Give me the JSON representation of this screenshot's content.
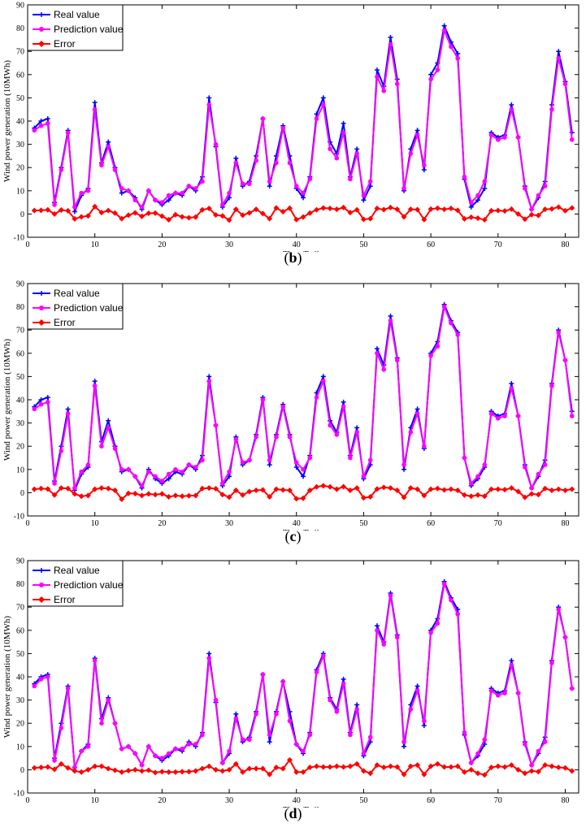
{
  "chart_data": [
    {
      "type": "line",
      "panel_label": "b",
      "xlabel": "Time/Daily",
      "ylabel": "Wind power generation (10MWh)",
      "xlim": [
        0,
        82
      ],
      "ylim": [
        -10,
        90
      ],
      "xticks": [
        0,
        10,
        20,
        30,
        40,
        50,
        60,
        70,
        80
      ],
      "yticks": [
        -10,
        0,
        10,
        20,
        30,
        40,
        50,
        60,
        70,
        80,
        90
      ],
      "legend_position": "top-left",
      "x_start": 1,
      "series": [
        {
          "name": "Real value",
          "color": "#0000ff",
          "marker": "plus",
          "values": [
            37,
            40,
            41,
            5,
            20,
            36,
            1,
            8,
            11,
            48,
            22,
            31,
            20,
            9,
            10,
            7,
            2,
            10,
            6,
            4,
            6,
            9,
            8,
            12,
            10,
            16,
            50,
            29,
            3,
            7,
            24,
            12,
            14,
            25,
            41,
            12,
            25,
            38,
            25,
            11,
            7,
            16,
            43,
            50,
            31,
            26,
            39,
            16,
            28,
            6,
            12,
            62,
            55,
            76,
            58,
            10,
            28,
            36,
            19,
            60,
            65,
            81,
            74,
            69,
            15,
            3,
            6,
            11,
            35,
            33,
            34,
            47,
            33,
            12,
            2,
            7,
            14,
            47,
            70,
            57,
            35
          ]
        },
        {
          "name": "Prediction value",
          "color": "#ff00ff",
          "marker": "circle",
          "values": [
            36,
            38,
            39,
            4,
            19,
            35,
            3,
            9,
            10,
            45,
            21,
            29,
            19,
            11,
            10,
            6,
            3,
            10,
            6,
            5,
            8,
            9,
            9,
            12,
            11,
            14,
            47,
            30,
            4,
            9,
            22,
            13,
            13,
            23,
            41,
            14,
            22,
            37,
            22,
            12,
            9,
            15,
            41,
            47,
            28,
            24,
            35,
            15,
            26,
            8,
            14,
            59,
            53,
            73,
            56,
            11,
            26,
            34,
            21,
            58,
            62,
            79,
            72,
            67,
            16,
            5,
            8,
            14,
            34,
            32,
            33,
            45,
            33,
            11,
            2,
            8,
            12,
            45,
            67,
            56,
            32
          ]
        },
        {
          "name": "Error",
          "color": "#ff0000",
          "marker": "diamond",
          "values": [
            1.5,
            1.6,
            1.8,
            0.0,
            1.7,
            1.4,
            -2.1,
            -1.2,
            -0.8,
            3.2,
            0.6,
            1.5,
            0.4,
            -2.0,
            -0.5,
            0.5,
            -1.0,
            0.3,
            0.4,
            -0.9,
            -2.5,
            -0.3,
            -1.2,
            -1.6,
            -1.3,
            1.8,
            2.4,
            -0.4,
            -0.8,
            -2.6,
            2.0,
            -0.5,
            0.5,
            2.0,
            0.2,
            -2.0,
            2.6,
            1.0,
            2.5,
            -2.4,
            -1.3,
            0.4,
            1.8,
            2.6,
            2.4,
            2.0,
            2.8,
            0.6,
            1.8,
            -2.3,
            -2.0,
            2.4,
            1.9,
            2.8,
            2.0,
            -1.2,
            2.0,
            1.9,
            -2.4,
            2.1,
            2.5,
            2.0,
            2.4,
            1.6,
            -2.1,
            -1.4,
            -1.8,
            -2.5,
            1.4,
            1.5,
            1.3,
            2.1,
            0.0,
            -2.2,
            -0.3,
            -0.6,
            2.0,
            2.2,
            3.0,
            1.4,
            2.6
          ]
        }
      ]
    },
    {
      "type": "line",
      "panel_label": "c",
      "xlabel": "Time/Daily",
      "ylabel": "Wind power generation (10MWh)",
      "xlim": [
        0,
        82
      ],
      "ylim": [
        -10,
        90
      ],
      "xticks": [
        0,
        10,
        20,
        30,
        40,
        50,
        60,
        70,
        80
      ],
      "yticks": [
        -10,
        0,
        10,
        20,
        30,
        40,
        50,
        60,
        70,
        80,
        90
      ],
      "legend_position": "top-left",
      "x_start": 1,
      "series": [
        {
          "name": "Real value",
          "color": "#0000ff",
          "marker": "plus",
          "values": [
            37,
            40,
            41,
            5,
            20,
            36,
            1,
            8,
            11,
            48,
            22,
            31,
            20,
            9,
            10,
            7,
            2,
            10,
            6,
            4,
            6,
            9,
            8,
            12,
            10,
            16,
            50,
            29,
            3,
            7,
            24,
            12,
            14,
            25,
            41,
            12,
            25,
            38,
            25,
            11,
            7,
            16,
            43,
            50,
            31,
            26,
            39,
            16,
            28,
            6,
            12,
            62,
            55,
            76,
            58,
            10,
            28,
            36,
            19,
            60,
            65,
            81,
            74,
            69,
            15,
            3,
            6,
            11,
            35,
            33,
            34,
            47,
            33,
            12,
            2,
            7,
            14,
            47,
            70,
            57,
            35
          ]
        },
        {
          "name": "Prediction value",
          "color": "#ff00ff",
          "marker": "circle",
          "values": [
            36,
            38,
            39,
            4,
            18,
            34,
            2,
            9,
            12,
            46,
            20,
            28,
            19,
            10,
            10,
            7,
            3,
            9,
            7,
            5,
            8,
            10,
            9,
            12,
            11,
            14,
            48,
            29,
            4,
            9,
            23,
            13,
            14,
            24,
            40,
            14,
            24,
            37,
            24,
            13,
            10,
            15,
            41,
            48,
            29,
            25,
            37,
            15,
            26,
            7,
            14,
            60,
            53,
            74,
            57,
            12,
            26,
            34,
            20,
            59,
            63,
            80,
            73,
            68,
            15,
            4,
            7,
            12,
            34,
            32,
            33,
            45,
            33,
            11,
            2,
            8,
            12,
            46,
            69,
            57,
            33
          ]
        },
        {
          "name": "Error",
          "color": "#ff0000",
          "marker": "diamond",
          "values": [
            1.5,
            1.8,
            1.6,
            -1.0,
            2.0,
            1.8,
            -0.5,
            -1.5,
            -1.2,
            1.5,
            2.0,
            1.8,
            1.0,
            -2.8,
            -0.3,
            -0.4,
            -1.2,
            -0.5,
            -0.8,
            -0.5,
            -1.8,
            -1.2,
            -1.5,
            -1.3,
            -1.2,
            1.8,
            2.0,
            1.7,
            -0.8,
            -1.9,
            1.0,
            -1.0,
            0.5,
            1.0,
            1.2,
            -1.8,
            1.5,
            1.2,
            1.0,
            -2.6,
            -2.4,
            1.0,
            2.5,
            3.0,
            2.5,
            1.5,
            2.6,
            1.0,
            2.0,
            -2.2,
            -1.8,
            1.6,
            2.3,
            2.0,
            1.0,
            -2.0,
            2.0,
            1.5,
            -1.2,
            1.5,
            1.8,
            1.2,
            1.5,
            1.0,
            -1.0,
            -1.5,
            -1.0,
            -1.5,
            1.5,
            1.5,
            1.3,
            2.0,
            0.5,
            -2.0,
            -0.5,
            -0.8,
            1.8,
            1.0,
            1.5,
            1.0,
            1.5
          ]
        }
      ]
    },
    {
      "type": "line",
      "panel_label": "d",
      "xlabel": "Time/Daily",
      "ylabel": "Wind power generation (10MWh)",
      "xlim": [
        0,
        82
      ],
      "ylim": [
        -10,
        90
      ],
      "xticks": [
        0,
        10,
        20,
        30,
        40,
        50,
        60,
        70,
        80
      ],
      "yticks": [
        -10,
        0,
        10,
        20,
        30,
        40,
        50,
        60,
        70,
        80,
        90
      ],
      "legend_position": "top-left",
      "x_start": 1,
      "series": [
        {
          "name": "Real value",
          "color": "#0000ff",
          "marker": "plus",
          "values": [
            37,
            40,
            41,
            5,
            20,
            36,
            1,
            8,
            11,
            48,
            22,
            31,
            20,
            9,
            10,
            7,
            2,
            10,
            6,
            4,
            6,
            9,
            8,
            12,
            10,
            16,
            50,
            29,
            3,
            7,
            24,
            12,
            14,
            25,
            41,
            12,
            25,
            38,
            25,
            11,
            7,
            16,
            43,
            50,
            31,
            26,
            39,
            16,
            28,
            6,
            12,
            62,
            55,
            76,
            58,
            10,
            28,
            36,
            19,
            60,
            65,
            81,
            74,
            69,
            15,
            3,
            6,
            11,
            35,
            33,
            34,
            47,
            33,
            12,
            2,
            7,
            14,
            47,
            70,
            57,
            35
          ]
        },
        {
          "name": "Prediction value",
          "color": "#ff00ff",
          "marker": "circle",
          "values": [
            36,
            39,
            40,
            4,
            18,
            35,
            1,
            8,
            10,
            47,
            20,
            30,
            20,
            9,
            10,
            7,
            2,
            10,
            6,
            5,
            7,
            9,
            9,
            11,
            11,
            15,
            48,
            30,
            3,
            8,
            22,
            13,
            13,
            24,
            41,
            15,
            24,
            38,
            21,
            11,
            8,
            15,
            42,
            49,
            30,
            25,
            37,
            15,
            26,
            7,
            14,
            60,
            54,
            75,
            57,
            12,
            26,
            34,
            21,
            59,
            63,
            80,
            73,
            67,
            16,
            3,
            7,
            13,
            34,
            32,
            33,
            45,
            33,
            11,
            2,
            8,
            12,
            46,
            69,
            57,
            35
          ]
        },
        {
          "name": "Error",
          "color": "#ff0000",
          "marker": "diamond",
          "values": [
            0.8,
            1.0,
            1.2,
            0.2,
            2.5,
            0.8,
            -0.5,
            -1.0,
            0.0,
            1.5,
            1.5,
            0.5,
            -0.2,
            -1.0,
            -0.4,
            0.0,
            -0.5,
            -0.2,
            -1.2,
            -0.8,
            -1.0,
            -1.0,
            -0.8,
            -0.8,
            -0.5,
            0.5,
            1.5,
            0.0,
            -0.5,
            0.0,
            2.5,
            -1.0,
            0.5,
            0.5,
            0.5,
            -2.0,
            1.0,
            0.5,
            4.2,
            -1.0,
            -1.0,
            1.0,
            1.5,
            1.2,
            1.2,
            1.5,
            1.2,
            1.5,
            2.5,
            -0.5,
            -1.5,
            2.0,
            1.0,
            1.5,
            1.2,
            -2.0,
            1.5,
            2.0,
            -2.0,
            1.5,
            2.5,
            1.2,
            1.2,
            1.5,
            -1.0,
            0.0,
            -1.5,
            -2.2,
            1.0,
            1.5,
            1.2,
            2.0,
            0.0,
            -1.5,
            -0.5,
            -0.8,
            2.0,
            1.5,
            1.0,
            0.8,
            -0.5
          ]
        }
      ]
    }
  ]
}
